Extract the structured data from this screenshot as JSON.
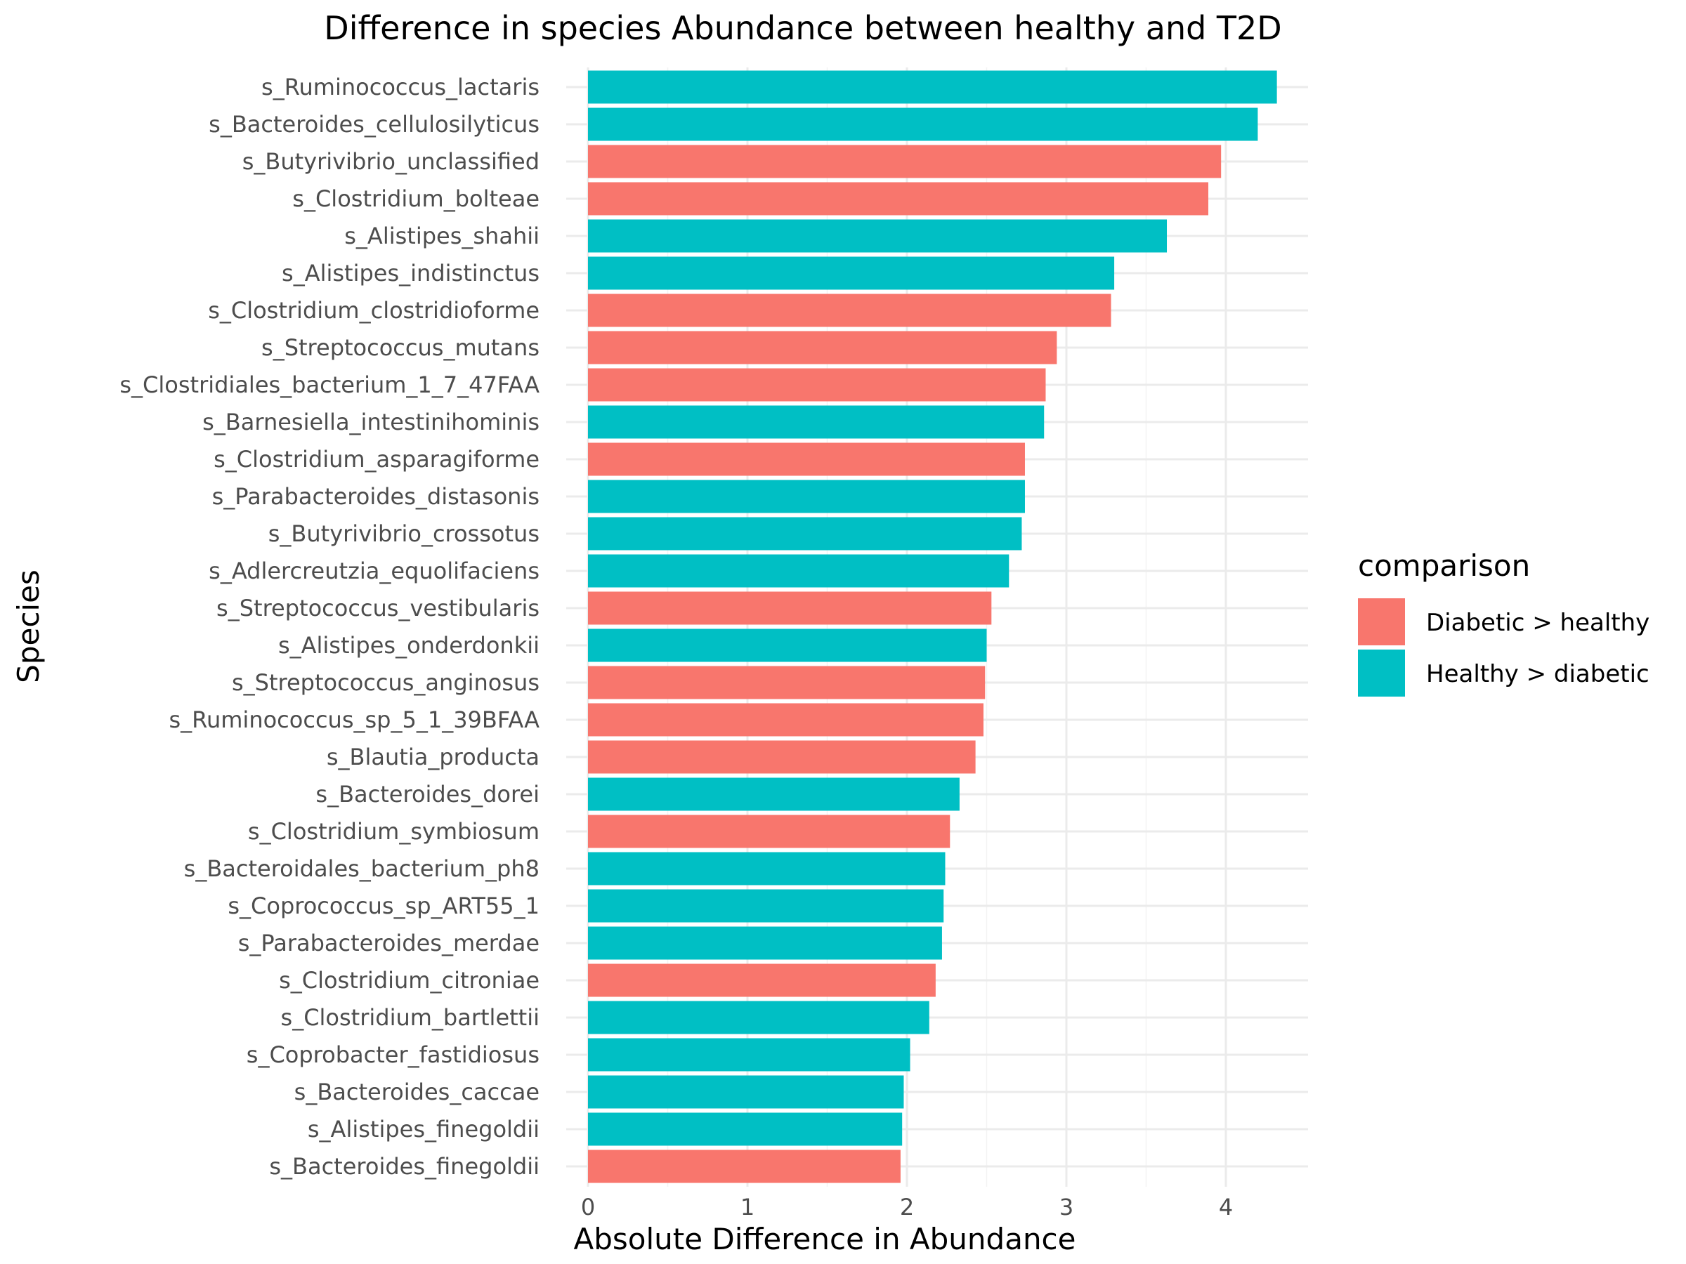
{
  "chart_data": {
    "type": "bar",
    "orientation": "horizontal",
    "title": "Difference in species Abundance between healthy and T2D",
    "xlabel": "Absolute Difference in Abundance",
    "ylabel": "Species",
    "xlim": [
      0,
      4.5
    ],
    "xticks": [
      0,
      1,
      2,
      3,
      4
    ],
    "grid": true,
    "legend": {
      "title": "comparison",
      "placement": "right",
      "entries": [
        {
          "label": "Diabetic > healthy",
          "color": "#F8766D"
        },
        {
          "label": "Healthy > diabetic",
          "color": "#00BFC4"
        }
      ]
    },
    "categories": [
      "s_Ruminococcus_lactaris",
      "s_Bacteroides_cellulosilyticus",
      "s_Butyrivibrio_unclassified",
      "s_Clostridium_bolteae",
      "s_Alistipes_shahii",
      "s_Alistipes_indistinctus",
      "s_Clostridium_clostridioforme",
      "s_Streptococcus_mutans",
      "s_Clostridiales_bacterium_1_7_47FAA",
      "s_Barnesiella_intestinihominis",
      "s_Clostridium_asparagiforme",
      "s_Parabacteroides_distasonis",
      "s_Butyrivibrio_crossotus",
      "s_Adlercreutzia_equolifaciens",
      "s_Streptococcus_vestibularis",
      "s_Alistipes_onderdonkii",
      "s_Streptococcus_anginosus",
      "s_Ruminococcus_sp_5_1_39BFAA",
      "s_Blautia_producta",
      "s_Bacteroides_dorei",
      "s_Clostridium_symbiosum",
      "s_Bacteroidales_bacterium_ph8",
      "s_Coprococcus_sp_ART55_1",
      "s_Parabacteroides_merdae",
      "s_Clostridium_citroniae",
      "s_Clostridium_bartlettii",
      "s_Coprobacter_fastidiosus",
      "s_Bacteroides_caccae",
      "s_Alistipes_finegoldii",
      "s_Bacteroides_finegoldii"
    ],
    "values": [
      4.32,
      4.2,
      3.97,
      3.89,
      3.63,
      3.3,
      3.28,
      2.94,
      2.87,
      2.86,
      2.74,
      2.74,
      2.72,
      2.64,
      2.53,
      2.5,
      2.49,
      2.48,
      2.43,
      2.33,
      2.27,
      2.24,
      2.23,
      2.22,
      2.18,
      2.14,
      2.02,
      1.98,
      1.97,
      1.96
    ],
    "groups": [
      "Healthy > diabetic",
      "Healthy > diabetic",
      "Diabetic > healthy",
      "Diabetic > healthy",
      "Healthy > diabetic",
      "Healthy > diabetic",
      "Diabetic > healthy",
      "Diabetic > healthy",
      "Diabetic > healthy",
      "Healthy > diabetic",
      "Diabetic > healthy",
      "Healthy > diabetic",
      "Healthy > diabetic",
      "Healthy > diabetic",
      "Diabetic > healthy",
      "Healthy > diabetic",
      "Diabetic > healthy",
      "Diabetic > healthy",
      "Diabetic > healthy",
      "Healthy > diabetic",
      "Diabetic > healthy",
      "Healthy > diabetic",
      "Healthy > diabetic",
      "Healthy > diabetic",
      "Diabetic > healthy",
      "Healthy > diabetic",
      "Healthy > diabetic",
      "Healthy > diabetic",
      "Healthy > diabetic",
      "Diabetic > healthy"
    ]
  }
}
